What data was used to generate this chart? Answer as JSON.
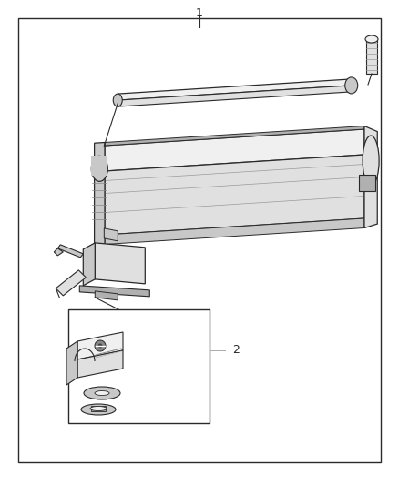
{
  "background_color": "#ffffff",
  "line_color": "#2a2a2a",
  "fill_light": "#f0f0f0",
  "fill_mid": "#e0e0e0",
  "fill_dark": "#c8c8c8",
  "fill_darker": "#b0b0b0",
  "callout_color": "#aaaaaa",
  "label1": "1",
  "label2": "2",
  "border": [
    20,
    20,
    398,
    488
  ]
}
